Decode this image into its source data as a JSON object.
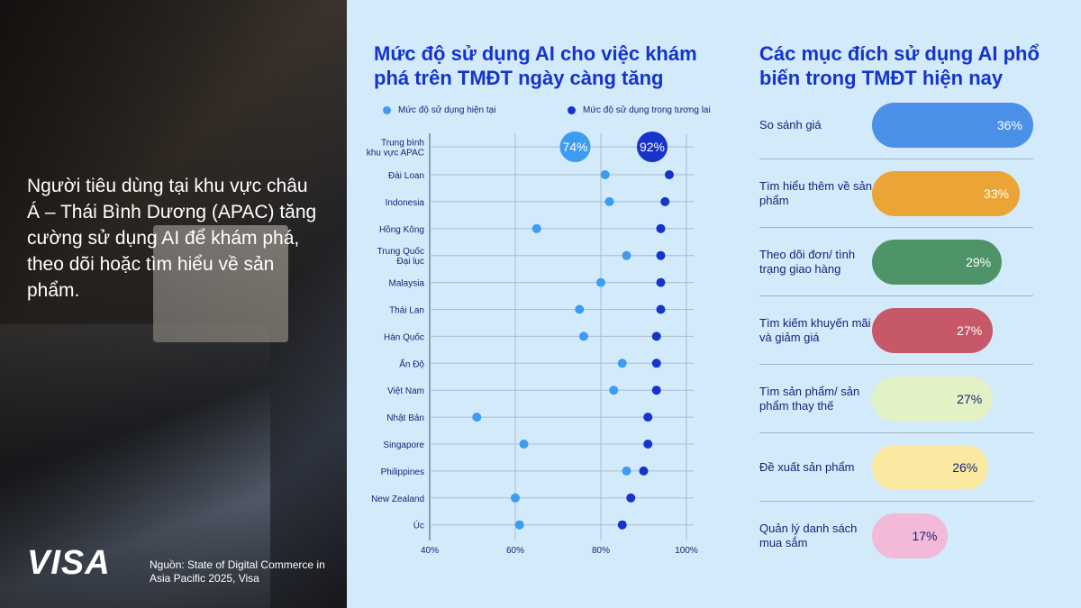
{
  "left": {
    "headline": "Người tiêu dùng tại khu vực châu Á – Thái Bình Dương (APAC) tăng cường sử dụng AI để khám phá, theo dõi hoặc tìm hiểu về sản phẩm.",
    "logo": "VISA",
    "source": "Nguồn: State of Digital Commerce in Asia Pacific 2025, Visa"
  },
  "chart_data": {
    "type": "dumbbell",
    "title": "Mức độ sử dụng AI cho việc khám phá trên TMĐT ngày càng tăng",
    "legend": [
      "Mức độ sử dụng hiện tại",
      "Mức độ sử dụng trong tương lai"
    ],
    "colors": {
      "current": "#3d9bf0",
      "future": "#1634c8"
    },
    "xlim": [
      40,
      100
    ],
    "xticks": [
      "40%",
      "60%",
      "80%",
      "100%"
    ],
    "categories": [
      "Trung bình khu vực APAC",
      "Đài Loan",
      "Indonesia",
      "Hồng Kông",
      "Trung Quốc Đại lục",
      "Malaysia",
      "Thái Lan",
      "Hàn Quốc",
      "Ấn Độ",
      "Việt Nam",
      "Nhật Bản",
      "Singapore",
      "Philippines",
      "New Zealand",
      "Úc"
    ],
    "series": [
      {
        "name": "Mức độ sử dụng hiện tại",
        "values": [
          74,
          81,
          82,
          65,
          86,
          80,
          75,
          76,
          85,
          83,
          51,
          62,
          86,
          60,
          61
        ]
      },
      {
        "name": "Mức độ sử dụng trong tương lai",
        "values": [
          92,
          96,
          95,
          94,
          94,
          94,
          94,
          93,
          93,
          93,
          91,
          91,
          90,
          87,
          85
        ]
      }
    ],
    "highlight_labels": [
      "74%",
      "92%"
    ],
    "grid": true
  },
  "purposes": {
    "title": "Các mục đích sử dụng AI phổ biến trong TMĐT hiện nay",
    "items": [
      {
        "label": "So sánh giá",
        "value": "36%",
        "pct": 36,
        "color": "#4a90e8",
        "text": "#fff"
      },
      {
        "label": "Tìm hiểu thêm về sản phẩm",
        "value": "33%",
        "pct": 33,
        "color": "#eba537",
        "text": "#fff"
      },
      {
        "label": "Theo dõi đơn/ tình trạng giao hàng",
        "value": "29%",
        "pct": 29,
        "color": "#4f9468",
        "text": "#fff"
      },
      {
        "label": "Tìm kiếm khuyến mãi và giảm giá",
        "value": "27%",
        "pct": 27,
        "color": "#c65868",
        "text": "#fff"
      },
      {
        "label": "Tìm sản phẩm/ sản phẩm thay thế",
        "value": "27%",
        "pct": 27,
        "color": "#e2f2c4",
        "text": "#1a1f71"
      },
      {
        "label": "Đề xuất sản phẩm",
        "value": "26%",
        "pct": 26,
        "color": "#fbe9a2",
        "text": "#1a1f71"
      },
      {
        "label": "Quản lý danh sách mua sắm",
        "value": "17%",
        "pct": 17,
        "color": "#f2b9d9",
        "text": "#1a1f71"
      }
    ]
  }
}
